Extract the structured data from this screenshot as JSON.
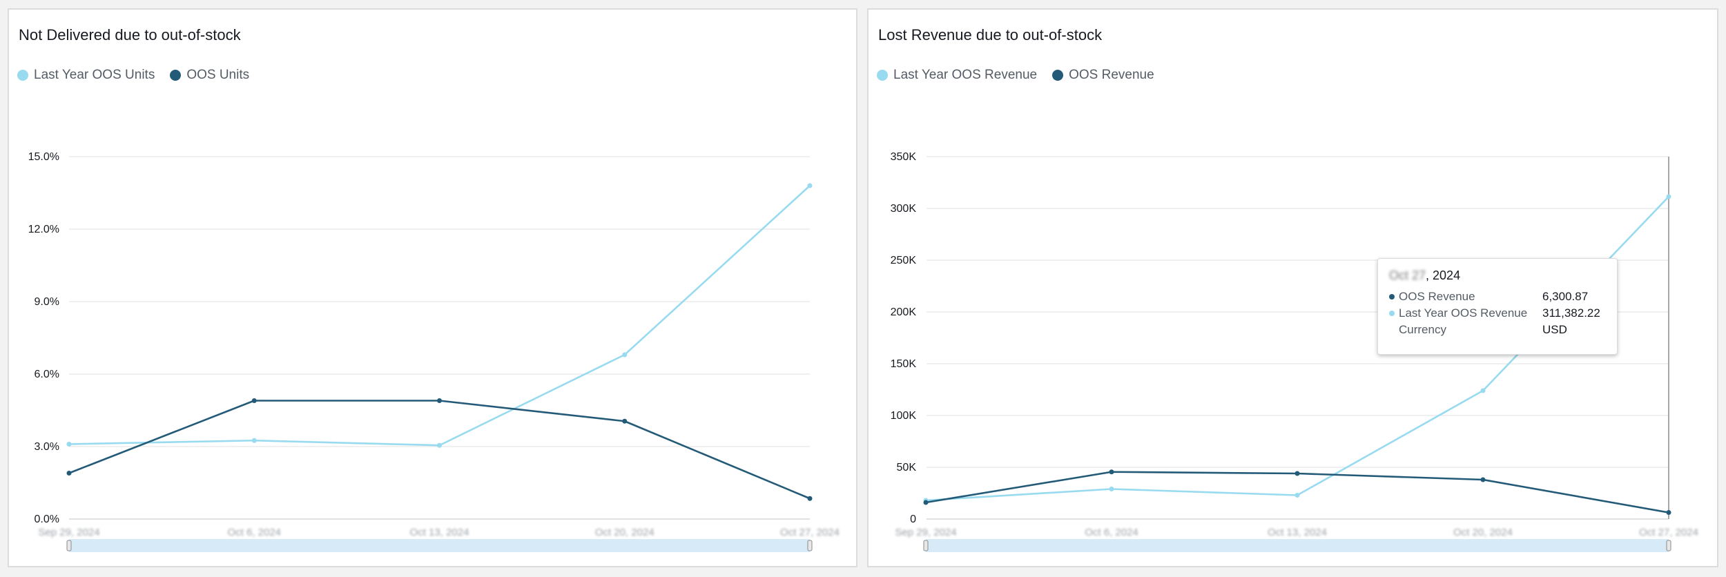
{
  "colors": {
    "light_series": "#98daf0",
    "dark_series": "#235a78",
    "grid": "#e6e6e6",
    "scroll_track": "#d6eaf8"
  },
  "panels": {
    "units": {
      "title": "Not Delivered due to out-of-stock",
      "legend": [
        "Last Year OOS Units",
        "OOS Units"
      ]
    },
    "revenue": {
      "title": "Lost Revenue due to out-of-stock",
      "legend": [
        "Last Year OOS Revenue",
        "OOS Revenue"
      ],
      "tooltip": {
        "date_month_day": "Oct 27",
        "date_year": ", 2024",
        "rows": [
          {
            "label": "OOS Revenue",
            "value": "6,300.87",
            "dot": "dark"
          },
          {
            "label": "Last Year OOS Revenue",
            "value": "311,382.22",
            "dot": "light"
          },
          {
            "label": "Currency",
            "value": "USD",
            "dot": "none"
          }
        ]
      }
    }
  },
  "chart_data": [
    {
      "type": "line",
      "title": "Not Delivered due to out-of-stock",
      "x": [
        "Sep 29, 2024",
        "Oct 6, 2024",
        "Oct 13, 2024",
        "Oct 20, 2024",
        "Oct 27, 2024"
      ],
      "y_ticks": [
        "0.0%",
        "3.0%",
        "6.0%",
        "9.0%",
        "12.0%",
        "15.0%"
      ],
      "y_tick_values": [
        0,
        3,
        6,
        9,
        12,
        15
      ],
      "ylim": [
        0,
        15
      ],
      "series": [
        {
          "name": "Last Year OOS Units",
          "color": "light",
          "values": [
            3.1,
            3.25,
            3.05,
            6.8,
            13.8
          ]
        },
        {
          "name": "OOS Units",
          "color": "dark",
          "values": [
            1.9,
            4.9,
            4.9,
            4.05,
            0.85
          ]
        }
      ],
      "grid": true,
      "legend": "top-left"
    },
    {
      "type": "line",
      "title": "Lost Revenue due to out-of-stock",
      "x": [
        "Sep 29, 2024",
        "Oct 6, 2024",
        "Oct 13, 2024",
        "Oct 20, 2024",
        "Oct 27, 2024"
      ],
      "y_ticks": [
        "0",
        "50K",
        "100K",
        "150K",
        "200K",
        "250K",
        "300K",
        "350K"
      ],
      "y_tick_values": [
        0,
        50000,
        100000,
        150000,
        200000,
        250000,
        300000,
        350000
      ],
      "ylim": [
        0,
        350000
      ],
      "series": [
        {
          "name": "Last Year OOS Revenue",
          "color": "light",
          "values": [
            18000,
            29000,
            23000,
            124000,
            311382.22
          ]
        },
        {
          "name": "OOS Revenue",
          "color": "dark",
          "values": [
            16000,
            45500,
            44000,
            38000,
            6300.87
          ]
        }
      ],
      "grid": true,
      "legend": "top-left",
      "highlighted_x": "Oct 27, 2024"
    }
  ]
}
